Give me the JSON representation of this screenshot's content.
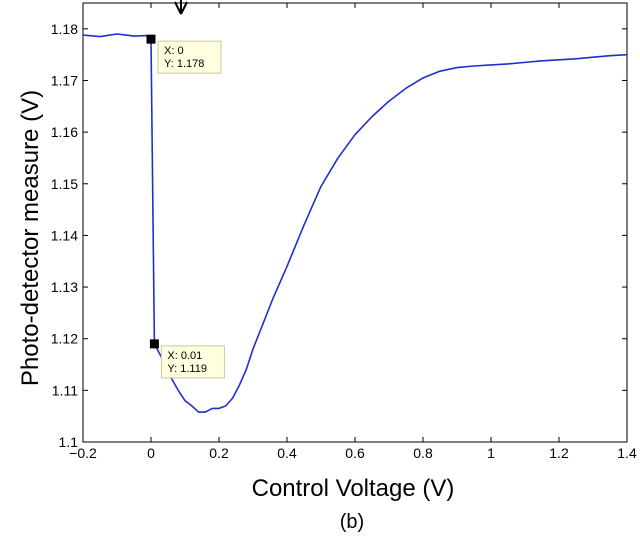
{
  "chart_data": {
    "type": "line",
    "xlabel": "Control Voltage (V)",
    "ylabel": "Photo-detector measure (V)",
    "caption": "(b)",
    "xlim": [
      -0.2,
      1.4
    ],
    "ylim": [
      1.1,
      1.185
    ],
    "xticks": [
      -0.2,
      0,
      0.2,
      0.4,
      0.6,
      0.8,
      1,
      1.2,
      1.4
    ],
    "xtick_labels": [
      "−0.2",
      "0",
      "0.2",
      "0.4",
      "0.6",
      "0.8",
      "1",
      "1.2",
      "1.4"
    ],
    "yticks": [
      1.1,
      1.11,
      1.12,
      1.13,
      1.14,
      1.15,
      1.16,
      1.17,
      1.18
    ],
    "ytick_labels": [
      "1.1",
      "1.11",
      "1.12",
      "1.13",
      "1.14",
      "1.15",
      "1.16",
      "1.17",
      "1.18"
    ],
    "grid": false,
    "series": [
      {
        "color": "#1f2fd0",
        "x": [
          -0.2,
          -0.15,
          -0.1,
          -0.05,
          -0.01,
          0,
          0.01,
          0.03,
          0.05,
          0.08,
          0.1,
          0.12,
          0.14,
          0.16,
          0.18,
          0.2,
          0.22,
          0.24,
          0.26,
          0.28,
          0.3,
          0.33,
          0.36,
          0.4,
          0.45,
          0.5,
          0.55,
          0.6,
          0.65,
          0.7,
          0.75,
          0.8,
          0.85,
          0.9,
          0.95,
          1.0,
          1.05,
          1.1,
          1.15,
          1.2,
          1.25,
          1.3,
          1.35,
          1.4
        ],
        "y": [
          1.1788,
          1.1785,
          1.179,
          1.1786,
          1.1787,
          1.178,
          1.119,
          1.1165,
          1.1135,
          1.11,
          1.108,
          1.107,
          1.1058,
          1.1058,
          1.1065,
          1.1065,
          1.107,
          1.1085,
          1.111,
          1.114,
          1.118,
          1.123,
          1.128,
          1.134,
          1.142,
          1.1495,
          1.155,
          1.1595,
          1.163,
          1.166,
          1.1685,
          1.1705,
          1.1718,
          1.1725,
          1.1728,
          1.173,
          1.1732,
          1.1735,
          1.1738,
          1.174,
          1.1742,
          1.1745,
          1.1748,
          1.175
        ]
      }
    ],
    "datatips": [
      {
        "x": 0,
        "y": 1.178,
        "x_label": "X: 0",
        "y_label": "Y: 1.178"
      },
      {
        "x": 0.01,
        "y": 1.119,
        "x_label": "X: 0.01",
        "y_label": "Y: 1.119"
      }
    ]
  }
}
